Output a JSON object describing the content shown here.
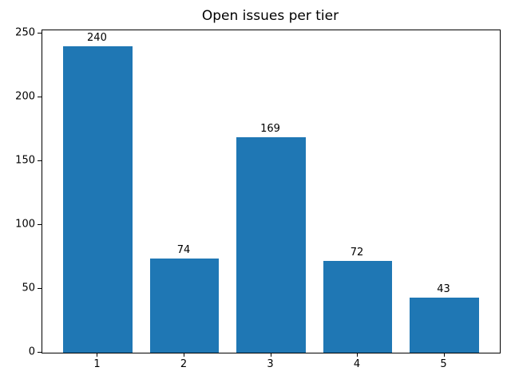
{
  "chart_data": {
    "type": "bar",
    "title": "Open issues per tier",
    "categories": [
      "1",
      "2",
      "3",
      "4",
      "5"
    ],
    "values": [
      240,
      74,
      169,
      72,
      43
    ],
    "bar_value_labels": [
      "240",
      "74",
      "169",
      "72",
      "43"
    ],
    "xlabel": "",
    "ylabel": "",
    "yticks": [
      0,
      50,
      100,
      150,
      200,
      250
    ],
    "ylim": [
      0,
      252.5
    ],
    "bar_color": "#1f77b4",
    "grid": false,
    "legend": null,
    "background_color": "#ffffff",
    "spine_color": "#000000"
  }
}
